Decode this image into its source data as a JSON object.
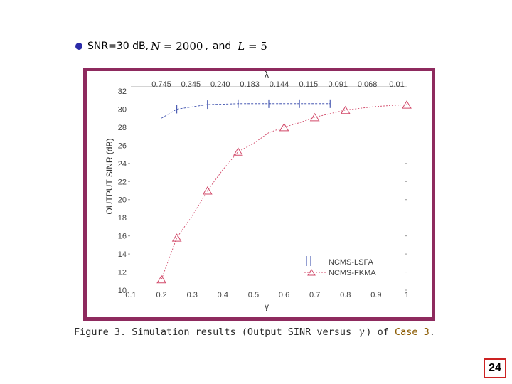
{
  "header": {
    "snr_text": "SNR=30 dB,",
    "n_var": "N",
    "n_val": " = 2000",
    "comma": ",",
    "and_text": "and",
    "l_var": "L",
    "l_val": " = 5"
  },
  "caption": {
    "prefix": "Figure 3. Simulation results (Output SINR versus",
    "gamma": "γ",
    "middle": ") of",
    "case": "Case 3",
    "period": "."
  },
  "page_number": "24",
  "chart_data": {
    "type": "line",
    "title": "",
    "xlabel": "γ",
    "ylabel": "OUTPUT SINR (dB)",
    "top_axis_label": "λ",
    "xlim": [
      0.1,
      1
    ],
    "ylim": [
      10,
      32
    ],
    "x_ticks": [
      "0.1",
      "0.2",
      "0.3",
      "0.4",
      "0.5",
      "0.6",
      "0.7",
      "0.8",
      "0.9",
      "1"
    ],
    "y_ticks": [
      "10",
      "12",
      "14",
      "16",
      "18",
      "20",
      "22",
      "24",
      "26",
      "28",
      "30",
      "32"
    ],
    "top_ticks": [
      "0.745",
      "0.345",
      "0.240",
      "0.183",
      "0.144",
      "0.115",
      "0.091",
      "0.068",
      "0.01"
    ],
    "grid": false,
    "legend_position": "bottom-right",
    "series": [
      {
        "name": "NCMS-LSFA",
        "marker": "bar",
        "color": "#2a3fa6",
        "x": [
          0.25,
          0.35,
          0.45,
          0.55,
          0.65,
          0.75
        ],
        "y": [
          30.0,
          30.5,
          30.6,
          30.6,
          30.6,
          30.6
        ]
      },
      {
        "name": "NCMS-FKMA",
        "marker": "triangle",
        "color": "#d24a6a",
        "x": [
          0.2,
          0.25,
          0.3,
          0.35,
          0.4,
          0.45,
          0.5,
          0.55,
          0.6,
          0.65,
          0.7,
          0.75,
          0.8,
          0.85,
          0.9,
          1.0
        ],
        "y": [
          11.2,
          15.8,
          18.2,
          21.0,
          23.3,
          25.3,
          26.2,
          27.4,
          28.0,
          28.5,
          29.1,
          29.5,
          29.9,
          30.1,
          30.3,
          30.5
        ]
      }
    ]
  }
}
